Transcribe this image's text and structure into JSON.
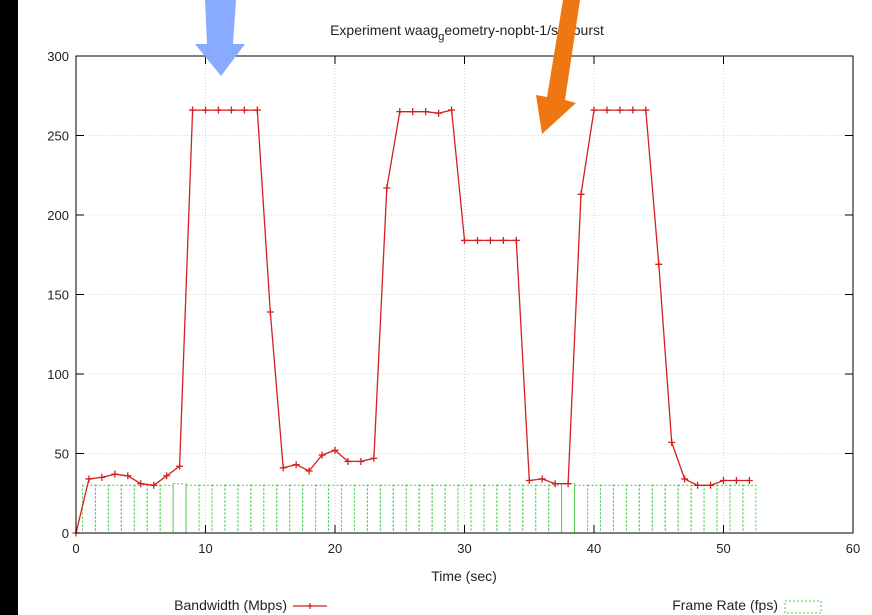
{
  "chart_data": {
    "type": "line",
    "title": "Experiment waag_geometry-nopbt-1/secburst",
    "title_parts": {
      "before": "Experiment waag",
      "sub": "g",
      "after": "eometry-nopbt-1/secburst"
    },
    "xlabel": "Time (sec)",
    "ylabel": "",
    "xlim": [
      0,
      60
    ],
    "ylim": [
      0,
      300
    ],
    "x_ticks": [
      0,
      10,
      20,
      30,
      40,
      50,
      60
    ],
    "y_ticks": [
      0,
      50,
      100,
      150,
      200,
      250,
      300
    ],
    "grid": true,
    "legend_position": "bottom",
    "series": [
      {
        "name": "Bandwidth (Mbps)",
        "style": "line-with-plus-markers",
        "color": "#d42020",
        "x": [
          0,
          1,
          2,
          3,
          4,
          5,
          6,
          7,
          8,
          9,
          10,
          11,
          12,
          13,
          14,
          15,
          16,
          17,
          18,
          19,
          20,
          21,
          22,
          23,
          24,
          25,
          26,
          27,
          28,
          29,
          30,
          31,
          32,
          33,
          34,
          35,
          36,
          37,
          38,
          39,
          40,
          41,
          42,
          43,
          44,
          45,
          46,
          47,
          48,
          49,
          50,
          51,
          52
        ],
        "values": [
          0,
          34,
          35,
          37,
          36,
          31,
          30,
          36,
          42,
          266,
          266,
          266,
          266,
          266,
          266,
          139,
          41,
          43,
          39,
          49,
          52,
          45,
          45,
          47,
          217,
          265,
          265,
          265,
          264,
          266,
          184,
          184,
          184,
          184,
          184,
          33,
          34,
          31,
          31,
          213,
          266,
          266,
          266,
          266,
          266,
          169,
          57,
          34,
          30,
          30,
          33,
          33,
          33
        ]
      },
      {
        "name": "Frame Rate (fps)",
        "style": "dashed-bars",
        "color": "#44cc44",
        "x": [
          1,
          2,
          3,
          4,
          5,
          6,
          7,
          8,
          9,
          10,
          11,
          12,
          13,
          14,
          15,
          16,
          17,
          18,
          19,
          20,
          21,
          22,
          23,
          24,
          25,
          26,
          27,
          28,
          29,
          30,
          31,
          32,
          33,
          34,
          35,
          36,
          37,
          38,
          39,
          40,
          41,
          42,
          43,
          44,
          45,
          46,
          47,
          48,
          49,
          50,
          51,
          52
        ],
        "values": [
          30,
          30,
          30,
          30,
          30,
          30,
          30,
          31,
          30,
          30,
          30,
          30,
          30,
          30,
          30,
          30,
          30,
          30,
          30,
          30,
          30,
          30,
          30,
          30,
          30,
          30,
          30,
          30,
          30,
          30,
          30,
          30,
          30,
          30,
          30,
          30,
          30,
          31,
          30,
          30,
          30,
          30,
          30,
          30,
          30,
          30,
          30,
          30,
          30,
          30,
          30,
          30
        ]
      }
    ]
  },
  "annotations": {
    "arrows": [
      {
        "name": "blue-arrow",
        "color": "#88aaff"
      },
      {
        "name": "orange-arrow",
        "color": "#ee7711"
      }
    ]
  }
}
